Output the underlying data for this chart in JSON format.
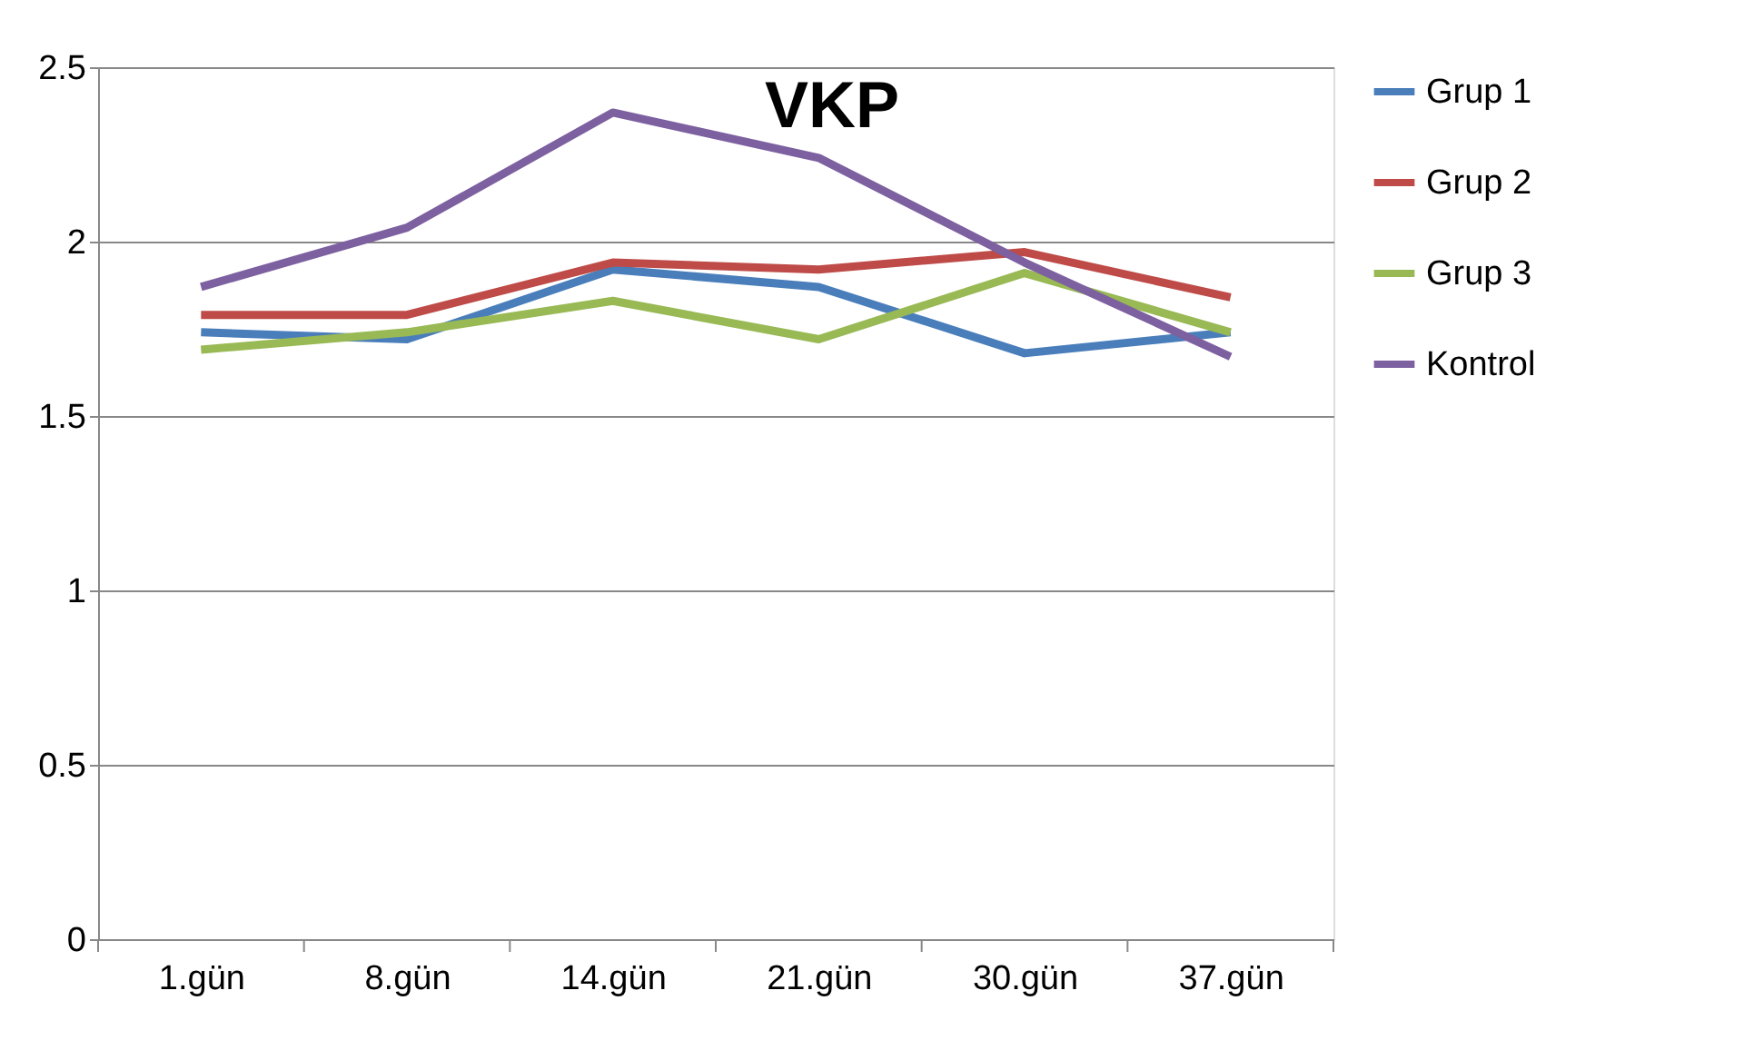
{
  "chart_data": {
    "type": "line",
    "title": "VKP",
    "categories": [
      "1.gün",
      "8.gün",
      "14.gün",
      "21.gün",
      "30.gün",
      "37.gün"
    ],
    "series": [
      {
        "name": "Grup 1",
        "color": "#4a7ebb",
        "values": [
          1.74,
          1.72,
          1.92,
          1.87,
          1.68,
          1.74
        ]
      },
      {
        "name": "Grup 2",
        "color": "#be4b48",
        "values": [
          1.79,
          1.79,
          1.94,
          1.92,
          1.97,
          1.84
        ]
      },
      {
        "name": "Grup 3",
        "color": "#98b954",
        "values": [
          1.69,
          1.74,
          1.83,
          1.72,
          1.91,
          1.74
        ]
      },
      {
        "name": "Kontrol",
        "color": "#7d60a0",
        "values": [
          1.87,
          2.04,
          2.37,
          2.24,
          1.94,
          1.67
        ]
      }
    ],
    "ylim": [
      0,
      2.5
    ],
    "yticks": [
      0,
      0.5,
      1,
      1.5,
      2,
      2.5
    ],
    "grid": "y",
    "legend": "right",
    "marker": "none",
    "line_style": "solid"
  }
}
